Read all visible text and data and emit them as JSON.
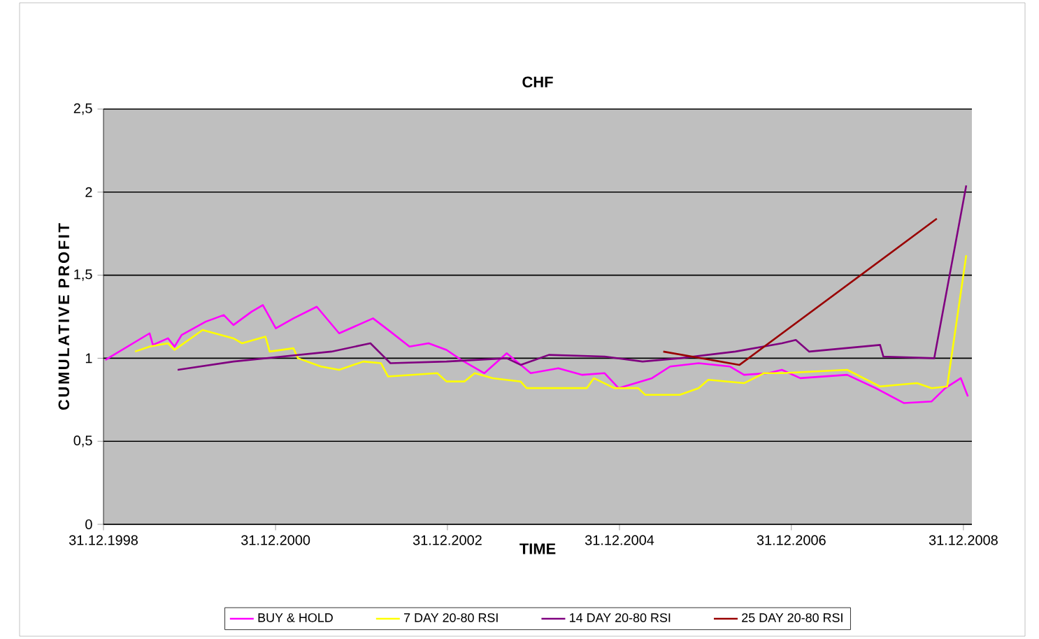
{
  "chart_data": {
    "type": "line",
    "title": "CHF",
    "xlabel": "TIME",
    "ylabel": "CUMULATIVE PROFIT",
    "xlim": [
      "1998-12-31",
      "2009-02-05"
    ],
    "ylim": [
      0,
      2.5
    ],
    "xticks": [
      {
        "value": "1998-12-31",
        "label": "31.12.1998"
      },
      {
        "value": "2000-12-31",
        "label": "31.12.2000"
      },
      {
        "value": "2002-12-31",
        "label": "31.12.2002"
      },
      {
        "value": "2004-12-31",
        "label": "31.12.2004"
      },
      {
        "value": "2006-12-31",
        "label": "31.12.2006"
      },
      {
        "value": "2008-12-31",
        "label": "31.12.2008"
      }
    ],
    "yticks": [
      0,
      {
        "value": 0.5,
        "label": "0,5"
      },
      1,
      {
        "value": 1.5,
        "label": "1,5"
      },
      2,
      {
        "value": 2.5,
        "label": "2,5"
      }
    ],
    "grid": "y",
    "legend": "bottom",
    "marker": "none",
    "line_style": "solid",
    "series": [
      {
        "name": "BUY & HOLD",
        "color": "#ff00ff",
        "x": [
          "1999-01-08",
          "1999-07-15",
          "1999-07-29",
          "1999-10-01",
          "1999-10-29",
          "1999-11-28",
          "2000-03-09",
          "2000-05-25",
          "2000-07-05",
          "2000-09-20",
          "2000-11-07",
          "2001-01-01",
          "2001-03-17",
          "2001-06-24",
          "2001-09-27",
          "2002-02-18",
          "2002-05-03",
          "2002-07-23",
          "2002-10-12",
          "2002-12-27",
          "2003-02-28",
          "2003-06-06",
          "2003-09-09",
          "2003-12-20",
          "2004-04-15",
          "2004-07-26",
          "2004-10-29",
          "2004-12-27",
          "2005-05-18",
          "2005-08-03",
          "2005-12-02",
          "2006-04-15",
          "2006-06-13",
          "2006-09-24",
          "2006-11-21",
          "2007-02-07",
          "2007-08-25",
          "2007-12-24",
          "2008-04-23",
          "2008-08-18",
          "2008-10-15",
          "2008-12-20",
          "2009-01-19"
        ],
        "values": [
          0.99,
          1.15,
          1.08,
          1.12,
          1.07,
          1.14,
          1.22,
          1.26,
          1.2,
          1.28,
          1.32,
          1.18,
          1.24,
          1.31,
          1.15,
          1.24,
          1.16,
          1.07,
          1.09,
          1.05,
          0.99,
          0.91,
          1.03,
          0.91,
          0.94,
          0.9,
          0.91,
          0.82,
          0.88,
          0.95,
          0.97,
          0.95,
          0.9,
          0.91,
          0.93,
          0.88,
          0.9,
          0.82,
          0.73,
          0.74,
          0.82,
          0.88,
          0.77
        ]
      },
      {
        "name": "7 DAY 20-80 RSI",
        "color": "#ffff00",
        "x": [
          "1999-05-14",
          "1999-07-15",
          "1999-10-01",
          "1999-10-29",
          "2000-02-25",
          "2000-07-05",
          "2000-08-11",
          "2000-11-18",
          "2000-12-06",
          "2001-03-17",
          "2001-04-05",
          "2001-07-12",
          "2001-09-27",
          "2002-01-08",
          "2002-03-24",
          "2002-04-23",
          "2002-11-18",
          "2002-12-27",
          "2003-03-13",
          "2003-04-26",
          "2003-07-12",
          "2003-11-07",
          "2003-12-02",
          "2004-04-15",
          "2004-08-14",
          "2004-09-13",
          "2004-12-09",
          "2005-03-20",
          "2005-04-19",
          "2005-09-13",
          "2005-12-02",
          "2006-01-12",
          "2006-06-13",
          "2006-09-06",
          "2006-11-21",
          "2007-08-25",
          "2008-01-12",
          "2008-06-17",
          "2008-08-18",
          "2008-10-23",
          "2009-01-12"
        ],
        "values": [
          1.04,
          1.07,
          1.09,
          1.05,
          1.17,
          1.12,
          1.09,
          1.13,
          1.04,
          1.06,
          1.0,
          0.95,
          0.93,
          0.98,
          0.97,
          0.89,
          0.91,
          0.86,
          0.86,
          0.91,
          0.88,
          0.86,
          0.82,
          0.82,
          0.82,
          0.88,
          0.82,
          0.82,
          0.78,
          0.78,
          0.82,
          0.87,
          0.85,
          0.91,
          0.91,
          0.93,
          0.83,
          0.85,
          0.82,
          0.83,
          1.62
        ]
      },
      {
        "name": "14 DAY 20-80 RSI",
        "color": "#800080",
        "x": [
          "1999-11-11",
          "2000-07-05",
          "2001-08-25",
          "2002-02-07",
          "2002-05-03",
          "2002-12-27",
          "2003-09-09",
          "2003-11-07",
          "2004-03-06",
          "2004-10-29",
          "2005-04-08",
          "2005-09-13",
          "2006-05-07",
          "2006-11-21",
          "2007-01-19",
          "2007-03-17",
          "2008-01-12",
          "2008-01-26",
          "2008-08-29",
          "2009-01-12"
        ],
        "values": [
          0.93,
          0.98,
          1.04,
          1.09,
          0.97,
          0.98,
          1.0,
          0.96,
          1.02,
          1.01,
          0.98,
          1.0,
          1.04,
          1.09,
          1.11,
          1.04,
          1.08,
          1.01,
          1.0,
          2.04
        ]
      },
      {
        "name": "25 DAY 20-80 RSI",
        "color": "#990000",
        "x": [
          "2005-07-05",
          "2006-05-25",
          "2008-09-09"
        ],
        "values": [
          1.04,
          0.96,
          1.84
        ]
      }
    ]
  }
}
